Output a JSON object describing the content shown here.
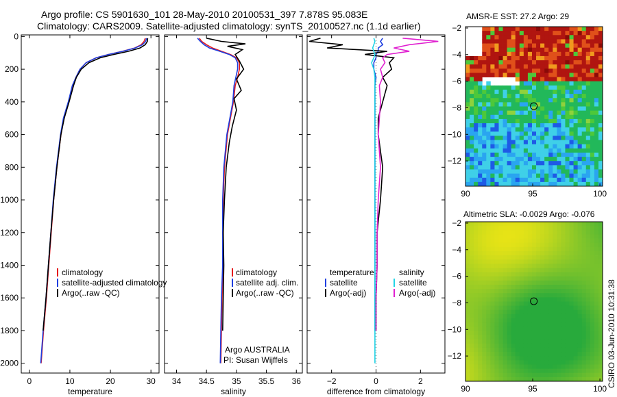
{
  "title": {
    "line1": "Argo profile: CS 5901630_101 28-May-2010 20100531_397 7.878S 95.083E",
    "line2": "Climatology: CARS2009. Satellite-adjusted climatology: synTS_20100527.nc (1.1d earlier)"
  },
  "colors": {
    "clim": "#e41a1c",
    "sat": "#1f3fe0",
    "argo": "#000000",
    "sal_sat": "#21d4e6",
    "sal_argo": "#e020d0"
  },
  "chart_data": [
    {
      "type": "line",
      "name": "temperature",
      "xlabel": "temperature",
      "xlim": [
        -2,
        32
      ],
      "xticks": [
        0,
        10,
        20,
        30
      ],
      "ylim": [
        -10,
        2060
      ],
      "yticks": [
        0,
        200,
        400,
        600,
        800,
        1000,
        1200,
        1400,
        1600,
        1800,
        2000
      ],
      "y_reversed": true,
      "legend": [
        "climatology",
        "satellite-adjusted climatology",
        "Argo(..raw -QC)"
      ],
      "series": [
        {
          "name": "climatology",
          "color": "clim",
          "x": [
            28.6,
            28.3,
            27.6,
            26,
            23,
            19.5,
            16.5,
            14,
            12.5,
            11.5,
            10.7,
            9.7,
            8.5,
            7.8,
            6.8,
            6,
            5.4,
            4.8,
            4.2,
            3.5,
            2.9
          ],
          "y": [
            10,
            30,
            50,
            70,
            90,
            110,
            130,
            160,
            200,
            250,
            300,
            400,
            500,
            600,
            800,
            1000,
            1200,
            1400,
            1600,
            1800,
            2000
          ]
        },
        {
          "name": "satellite-adjusted climatology",
          "color": "sat",
          "x": [
            28.9,
            28.7,
            27.9,
            26.1,
            23.1,
            19.5,
            16.5,
            14,
            12.5,
            11.5,
            10.6,
            9.6,
            8.4,
            7.7,
            6.7,
            5.9,
            5.3,
            4.7,
            4.1,
            3.4,
            2.8
          ],
          "y": [
            10,
            30,
            50,
            70,
            90,
            110,
            130,
            160,
            200,
            250,
            300,
            400,
            500,
            600,
            800,
            1000,
            1200,
            1400,
            1600,
            1800,
            2000
          ]
        },
        {
          "name": "Argo(..raw -QC)",
          "color": "argo",
          "x": [
            29.2,
            29.1,
            28.6,
            27.3,
            24.5,
            20.8,
            17.5,
            14.7,
            12.8,
            11.6,
            10.9,
            9.8,
            8.6,
            7.8,
            6.8,
            6,
            5.3,
            4.7,
            4.1,
            3.4
          ],
          "y": [
            10,
            30,
            50,
            70,
            90,
            110,
            130,
            160,
            200,
            250,
            300,
            400,
            500,
            600,
            800,
            1000,
            1200,
            1400,
            1600,
            1800
          ]
        }
      ]
    },
    {
      "type": "line",
      "name": "salinity",
      "xlabel": "salinity",
      "xlim": [
        33.8,
        36.1
      ],
      "xticks": [
        34,
        34.5,
        35,
        35.5,
        36
      ],
      "ylim": [
        -10,
        2060
      ],
      "yticks": [
        0,
        200,
        400,
        600,
        800,
        1000,
        1200,
        1400,
        1600,
        1800,
        2000
      ],
      "y_reversed": true,
      "legend": [
        "climatology",
        "satellite adj. clim.",
        "Argo(..raw -QC)"
      ],
      "annotations": [
        "Argo AUSTRALIA",
        "PI: Susan Wijffels"
      ],
      "series": [
        {
          "name": "climatology",
          "color": "clim",
          "x": [
            34.38,
            34.42,
            34.5,
            34.6,
            34.75,
            34.9,
            35.0,
            35.05,
            35.05,
            35.02,
            34.98,
            34.95,
            34.9,
            34.85,
            34.8,
            34.78,
            34.78,
            34.78,
            34.76,
            34.75,
            34.74
          ],
          "y": [
            10,
            30,
            50,
            70,
            90,
            110,
            130,
            160,
            200,
            250,
            300,
            400,
            500,
            600,
            800,
            1000,
            1200,
            1400,
            1600,
            1800,
            2000
          ]
        },
        {
          "name": "satellite adj. clim.",
          "color": "sat",
          "x": [
            34.35,
            34.4,
            34.46,
            34.55,
            34.72,
            34.88,
            34.98,
            35.02,
            35.02,
            34.99,
            34.96,
            34.94,
            34.89,
            34.84,
            34.79,
            34.77,
            34.77,
            34.77,
            34.75,
            34.74,
            34.73
          ],
          "y": [
            10,
            30,
            50,
            70,
            90,
            110,
            130,
            160,
            200,
            250,
            300,
            400,
            500,
            600,
            800,
            1000,
            1200,
            1400,
            1600,
            1800,
            2000
          ]
        },
        {
          "name": "Argo(..raw -QC)",
          "color": "argo",
          "x": [
            34.5,
            34.75,
            35.15,
            34.85,
            35.1,
            34.98,
            35.05,
            35.12,
            35.0,
            35.08,
            34.96,
            35.0,
            34.93,
            34.88,
            34.83,
            34.8,
            34.78,
            34.79,
            34.78,
            34.77
          ],
          "y": [
            10,
            30,
            45,
            60,
            80,
            110,
            150,
            200,
            260,
            330,
            380,
            450,
            550,
            650,
            800,
            1000,
            1200,
            1400,
            1600,
            1800
          ]
        }
      ]
    },
    {
      "type": "line",
      "name": "difference",
      "xlabel": "difference from climatology",
      "xlim": [
        -3.1,
        3.1
      ],
      "xticks": [
        -2,
        0,
        2
      ],
      "ylim": [
        -10,
        2060
      ],
      "yticks": [
        0,
        200,
        400,
        600,
        800,
        1000,
        1200,
        1400,
        1600,
        1800,
        2000
      ],
      "y_reversed": true,
      "legend_left": {
        "title": "temperature",
        "items": [
          "satellite",
          "Argo(-adj)"
        ]
      },
      "legend_right": {
        "title": "salinity",
        "items": [
          "satellite",
          "Argo(-adj)"
        ]
      },
      "series": [
        {
          "name": "temperature satellite",
          "color": "sat",
          "x": [
            0.3,
            0.2,
            0.3,
            0.1,
            0.1,
            0,
            0,
            -0.1,
            -0.1,
            0,
            -0.05,
            -0.05,
            -0.05,
            -0.05,
            -0.05,
            -0.05,
            -0.05,
            -0.05,
            -0.05,
            -0.05
          ],
          "y": [
            10,
            30,
            50,
            70,
            90,
            110,
            130,
            160,
            200,
            250,
            300,
            400,
            500,
            600,
            800,
            1000,
            1200,
            1400,
            1600,
            1800
          ]
        },
        {
          "name": "temperature Argo(-adj)",
          "color": "argo",
          "x": [
            -2.5,
            -3.0,
            -1.5,
            -2.2,
            0.5,
            -0.5,
            0.8,
            0.6,
            0.7,
            0.3,
            0.5,
            0.3,
            0.1,
            0.1,
            0.3,
            0.2,
            0.05,
            0.05,
            0,
            0
          ],
          "y": [
            10,
            30,
            50,
            70,
            90,
            110,
            130,
            160,
            200,
            250,
            300,
            400,
            500,
            600,
            800,
            1000,
            1200,
            1400,
            1600,
            1800
          ]
        },
        {
          "name": "salinity satellite",
          "color": "sal_sat",
          "x": [
            -0.1,
            -0.05,
            -0.1,
            -0.15,
            -0.1,
            -0.05,
            -0.1,
            -0.2,
            -0.1,
            -0.05,
            -0.05,
            -0.05,
            -0.05,
            -0.05,
            -0.05,
            -0.05,
            -0.05,
            -0.05,
            -0.05,
            -0.05,
            -0.05
          ],
          "y": [
            10,
            30,
            50,
            70,
            90,
            110,
            130,
            160,
            200,
            250,
            300,
            400,
            500,
            600,
            800,
            1000,
            1200,
            1400,
            1600,
            1800,
            2000
          ]
        },
        {
          "name": "salinity Argo(-adj)",
          "color": "sal_argo",
          "x": [
            1.2,
            2.8,
            1.5,
            0.8,
            1.5,
            0.5,
            0.3,
            0.4,
            0.2,
            0.3,
            0.15,
            0.2,
            0.15,
            0.1,
            0.2,
            0.1,
            0.05,
            0.05,
            0,
            0
          ],
          "y": [
            10,
            30,
            50,
            70,
            90,
            110,
            130,
            160,
            200,
            250,
            300,
            400,
            500,
            600,
            800,
            1000,
            1200,
            1400,
            1600,
            1800
          ]
        }
      ]
    },
    {
      "type": "heatmap",
      "name": "sst-map",
      "title": "AMSR-E SST: 27.2 Argo: 29",
      "xlim": [
        90,
        100.2
      ],
      "ylim": [
        -13.9,
        -1.9
      ],
      "xticks": [
        90,
        95,
        100
      ],
      "yticks": [
        -2,
        -4,
        -6,
        -8,
        -10,
        -12
      ],
      "marker": {
        "lon": 95.083,
        "lat": -7.878
      }
    },
    {
      "type": "heatmap",
      "name": "sla-map",
      "title": "Altimetric SLA: -0.0029 Argo: -0.076",
      "xlim": [
        90,
        100.2
      ],
      "ylim": [
        -13.9,
        -1.9
      ],
      "xticks": [
        90,
        95,
        100
      ],
      "yticks": [
        -2,
        -4,
        -6,
        -8,
        -10,
        -12
      ],
      "marker": {
        "lon": 95.083,
        "lat": -7.878
      }
    }
  ],
  "credit": "CSIRO 03-Jun-2010 10:31:38"
}
